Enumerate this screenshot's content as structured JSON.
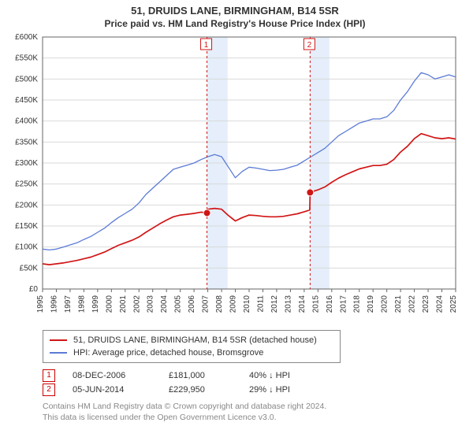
{
  "title": "51, DRUIDS LANE, BIRMINGHAM, B14 5SR",
  "subtitle": "Price paid vs. HM Land Registry's House Price Index (HPI)",
  "chart": {
    "type": "line",
    "background_color": "#ffffff",
    "grid_color": "#d9d9d9",
    "axis_color": "#666666",
    "tick_font_size": 10,
    "x_years_start": 1995,
    "x_years_end": 2025,
    "y_min": 0,
    "y_max": 600000,
    "y_tick_step": 50000,
    "y_tick_labels": [
      "£0",
      "£50K",
      "£100K",
      "£150K",
      "£200K",
      "£250K",
      "£300K",
      "£350K",
      "£400K",
      "£450K",
      "£500K",
      "£550K",
      "£600K"
    ],
    "series": [
      {
        "name": "HPI: Average price, detached house, Bromsgrove",
        "color": "#5b7bd5",
        "width": 1.3,
        "points": [
          [
            1995.0,
            95000
          ],
          [
            1995.5,
            93000
          ],
          [
            1996.0,
            95000
          ],
          [
            1996.5,
            100000
          ],
          [
            1997.0,
            105000
          ],
          [
            1997.5,
            110000
          ],
          [
            1998.0,
            118000
          ],
          [
            1998.5,
            125000
          ],
          [
            1999.0,
            135000
          ],
          [
            1999.5,
            145000
          ],
          [
            2000.0,
            158000
          ],
          [
            2000.5,
            170000
          ],
          [
            2001.0,
            180000
          ],
          [
            2001.5,
            190000
          ],
          [
            2002.0,
            205000
          ],
          [
            2002.5,
            225000
          ],
          [
            2003.0,
            240000
          ],
          [
            2003.5,
            255000
          ],
          [
            2004.0,
            270000
          ],
          [
            2004.5,
            285000
          ],
          [
            2005.0,
            290000
          ],
          [
            2005.5,
            295000
          ],
          [
            2006.0,
            300000
          ],
          [
            2006.5,
            308000
          ],
          [
            2007.0,
            315000
          ],
          [
            2007.5,
            320000
          ],
          [
            2008.0,
            315000
          ],
          [
            2008.5,
            290000
          ],
          [
            2009.0,
            265000
          ],
          [
            2009.5,
            280000
          ],
          [
            2010.0,
            290000
          ],
          [
            2010.5,
            288000
          ],
          [
            2011.0,
            285000
          ],
          [
            2011.5,
            282000
          ],
          [
            2012.0,
            283000
          ],
          [
            2012.5,
            285000
          ],
          [
            2013.0,
            290000
          ],
          [
            2013.5,
            295000
          ],
          [
            2014.0,
            305000
          ],
          [
            2014.5,
            315000
          ],
          [
            2015.0,
            325000
          ],
          [
            2015.5,
            335000
          ],
          [
            2016.0,
            350000
          ],
          [
            2016.5,
            365000
          ],
          [
            2017.0,
            375000
          ],
          [
            2017.5,
            385000
          ],
          [
            2018.0,
            395000
          ],
          [
            2018.5,
            400000
          ],
          [
            2019.0,
            405000
          ],
          [
            2019.5,
            405000
          ],
          [
            2020.0,
            410000
          ],
          [
            2020.5,
            425000
          ],
          [
            2021.0,
            450000
          ],
          [
            2021.5,
            470000
          ],
          [
            2022.0,
            495000
          ],
          [
            2022.5,
            515000
          ],
          [
            2023.0,
            510000
          ],
          [
            2023.5,
            500000
          ],
          [
            2024.0,
            505000
          ],
          [
            2024.5,
            510000
          ],
          [
            2025.0,
            505000
          ]
        ]
      },
      {
        "name": "51, DRUIDS LANE, BIRMINGHAM, B14 5SR (detached house)",
        "color": "#d11515",
        "width": 1.7,
        "points": [
          [
            1995.0,
            60000
          ],
          [
            1995.5,
            58000
          ],
          [
            1996.0,
            60000
          ],
          [
            1996.5,
            62000
          ],
          [
            1997.0,
            65000
          ],
          [
            1997.5,
            68000
          ],
          [
            1998.0,
            72000
          ],
          [
            1998.5,
            76000
          ],
          [
            1999.0,
            82000
          ],
          [
            1999.5,
            88000
          ],
          [
            2000.0,
            96000
          ],
          [
            2000.5,
            104000
          ],
          [
            2001.0,
            110000
          ],
          [
            2001.5,
            116000
          ],
          [
            2002.0,
            124000
          ],
          [
            2002.5,
            135000
          ],
          [
            2003.0,
            145000
          ],
          [
            2003.5,
            155000
          ],
          [
            2004.0,
            164000
          ],
          [
            2004.5,
            172000
          ],
          [
            2005.0,
            176000
          ],
          [
            2005.5,
            178000
          ],
          [
            2006.0,
            180000
          ],
          [
            2006.5,
            183000
          ],
          [
            2006.94,
            181000
          ],
          [
            2006.95,
            189000
          ],
          [
            2007.0,
            190000
          ],
          [
            2007.5,
            192000
          ],
          [
            2008.0,
            190000
          ],
          [
            2008.5,
            175000
          ],
          [
            2009.0,
            162000
          ],
          [
            2009.5,
            170000
          ],
          [
            2010.0,
            176000
          ],
          [
            2010.5,
            175000
          ],
          [
            2011.0,
            173000
          ],
          [
            2011.5,
            172000
          ],
          [
            2012.0,
            172000
          ],
          [
            2012.5,
            173000
          ],
          [
            2013.0,
            176000
          ],
          [
            2013.5,
            179000
          ],
          [
            2014.0,
            184000
          ],
          [
            2014.4,
            188000
          ],
          [
            2014.43,
            229950
          ],
          [
            2014.5,
            231000
          ],
          [
            2015.0,
            236000
          ],
          [
            2015.5,
            243000
          ],
          [
            2016.0,
            254000
          ],
          [
            2016.5,
            264000
          ],
          [
            2017.0,
            272000
          ],
          [
            2017.5,
            279000
          ],
          [
            2018.0,
            286000
          ],
          [
            2018.5,
            290000
          ],
          [
            2019.0,
            294000
          ],
          [
            2019.5,
            294000
          ],
          [
            2020.0,
            297000
          ],
          [
            2020.5,
            308000
          ],
          [
            2021.0,
            326000
          ],
          [
            2021.5,
            340000
          ],
          [
            2022.0,
            358000
          ],
          [
            2022.5,
            370000
          ],
          [
            2023.0,
            365000
          ],
          [
            2023.5,
            360000
          ],
          [
            2024.0,
            358000
          ],
          [
            2024.5,
            360000
          ],
          [
            2025.0,
            357000
          ]
        ]
      }
    ],
    "transactions": [
      {
        "id": "1",
        "date": "08-DEC-2006",
        "x": 2006.94,
        "price": "£181,000",
        "diff": "40% ↓ HPI",
        "band_color": "#cfe0f5",
        "band_width_years": 1.5
      },
      {
        "id": "2",
        "date": "05-JUN-2014",
        "x": 2014.43,
        "price": "£229,950",
        "diff": "29% ↓ HPI",
        "band_color": "#cfe0f5",
        "band_width_years": 1.4
      }
    ]
  },
  "legend": {
    "series1_label": "51, DRUIDS LANE, BIRMINGHAM, B14 5SR (detached house)",
    "series1_color": "#d11515",
    "series2_label": "HPI: Average price, detached house, Bromsgrove",
    "series2_color": "#5b7bd5"
  },
  "footer_line1": "Contains HM Land Registry data © Crown copyright and database right 2024.",
  "footer_line2": "This data is licensed under the Open Government Licence v3.0."
}
